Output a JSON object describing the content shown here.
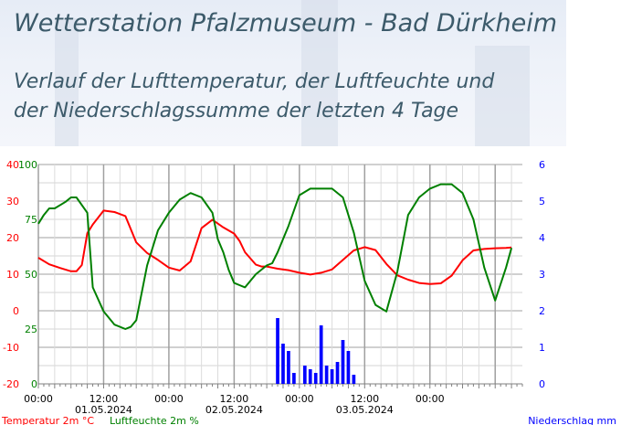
{
  "header": {
    "title": "Wetterstation Pfalzmuseum - Bad Dürkheim",
    "subtitle_line1": "Verlauf der Lufttemperatur, der Luftfeuchte und",
    "subtitle_line2": "der Niederschlagssumme der letzten 4 Tage"
  },
  "colors": {
    "temperature": "#ff0000",
    "humidity": "#008000",
    "precipitation": "#0000ff",
    "grid": "#bfbfbf",
    "banner": "#e6ecf6",
    "title": "#3c5a6a"
  },
  "chart_data": {
    "type": "line",
    "grid": true,
    "x_ticks": [
      "00:00",
      "12:00",
      "00:00",
      "12:00",
      "00:00",
      "12:00",
      "00:00"
    ],
    "date_labels": [
      "01.05.2024",
      "02.05.2024",
      "03.05.2024"
    ],
    "axes": {
      "temperature": {
        "label": "Temperatur 2m °C",
        "ticks": [
          "40",
          "30",
          "20",
          "10",
          "0",
          "-10",
          "-20"
        ],
        "ylim": [
          -20,
          40
        ]
      },
      "humidity": {
        "label": "Luftfeuchte 2m %",
        "ticks": [
          "100",
          "75",
          "50",
          "25",
          "0"
        ],
        "ylim": [
          0,
          100
        ]
      },
      "precipitation": {
        "label": "Niederschlag mm",
        "ticks": [
          "6",
          "5",
          "4",
          "3",
          "2",
          "1",
          "0"
        ],
        "ylim": [
          0,
          6
        ]
      }
    },
    "x_range_hours": [
      0,
      89
    ],
    "series": [
      {
        "name": "Temperatur 2m °C",
        "axis": "temperature",
        "color": "#ff0000",
        "x": [
          0,
          2,
          4,
          6,
          7,
          8,
          9,
          10,
          12,
          14,
          16,
          18,
          20,
          22,
          24,
          26,
          28,
          30,
          32,
          34,
          36,
          37,
          38,
          40,
          41,
          42,
          43,
          44,
          46,
          48,
          50,
          52,
          54,
          56,
          58,
          60,
          62,
          64,
          66,
          68,
          70,
          72,
          74,
          76,
          78,
          80,
          82,
          84,
          86,
          87
        ],
        "values": [
          14.5,
          12.7,
          11.7,
          10.8,
          10.8,
          12.5,
          21.2,
          23.6,
          27.4,
          27.0,
          25.9,
          18.7,
          15.8,
          13.9,
          11.8,
          11.0,
          13.5,
          22.6,
          24.9,
          22.8,
          21.1,
          19.1,
          16.0,
          12.6,
          12.1,
          12.1,
          11.8,
          11.5,
          11.1,
          10.4,
          9.9,
          10.4,
          11.3,
          13.9,
          16.5,
          17.4,
          16.6,
          12.8,
          9.7,
          8.5,
          7.6,
          7.3,
          7.5,
          9.6,
          13.8,
          16.5,
          16.9,
          17.1,
          17.2,
          17.3
        ]
      },
      {
        "name": "Luftfeuchte 2m %",
        "axis": "humidity",
        "color": "#008000",
        "x": [
          0,
          1,
          2,
          3,
          5,
          6,
          7,
          9,
          10,
          12,
          14,
          16,
          17,
          18,
          20,
          22,
          24,
          26,
          28,
          30,
          32,
          33,
          34,
          35,
          36,
          37,
          38,
          40,
          42,
          43,
          44,
          46,
          48,
          50,
          52,
          54,
          56,
          58,
          60,
          62,
          64,
          66,
          68,
          70,
          72,
          74,
          76,
          78,
          80,
          82,
          84,
          86,
          87
        ],
        "values": [
          73,
          77,
          80,
          80,
          83,
          85,
          85,
          78,
          44,
          33,
          27,
          25,
          26,
          29,
          54,
          70,
          78,
          84,
          87,
          85,
          78,
          66,
          60,
          52,
          46,
          45,
          44,
          50,
          54,
          55,
          60,
          72,
          86,
          89,
          89,
          89,
          85,
          69,
          47,
          36,
          33,
          51,
          77,
          85,
          89,
          91,
          91,
          87,
          75,
          53,
          38,
          53,
          62
        ]
      },
      {
        "name": "Niederschlag mm",
        "axis": "precipitation",
        "type": "bar",
        "color": "#0000ff",
        "x": [
          44,
          45,
          46,
          47,
          48,
          49,
          50,
          51,
          52,
          53,
          54,
          55,
          56,
          57,
          58
        ],
        "values": [
          1.8,
          1.1,
          0.9,
          0.3,
          0.0,
          0.5,
          0.4,
          0.3,
          1.6,
          0.5,
          0.4,
          0.6,
          1.2,
          0.9,
          0.25
        ]
      }
    ]
  }
}
